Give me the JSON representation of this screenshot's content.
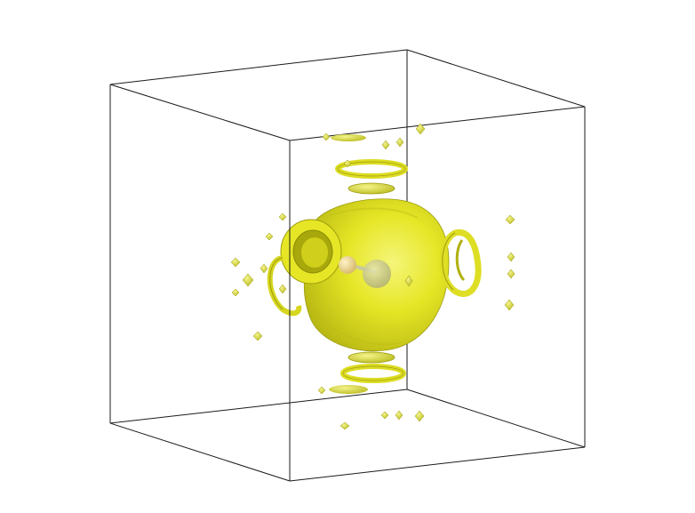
{
  "scene": {
    "background_color": "#ffffff",
    "box_edge_color": "#1a1a1a",
    "isosurface_color": "#e8e826",
    "isosurface_highlight": "#f7f7a0",
    "isosurface_shadow": "#a8a80e",
    "atom_color": "#d9c98a",
    "atom_secondary_color": "#bcbc8c"
  }
}
